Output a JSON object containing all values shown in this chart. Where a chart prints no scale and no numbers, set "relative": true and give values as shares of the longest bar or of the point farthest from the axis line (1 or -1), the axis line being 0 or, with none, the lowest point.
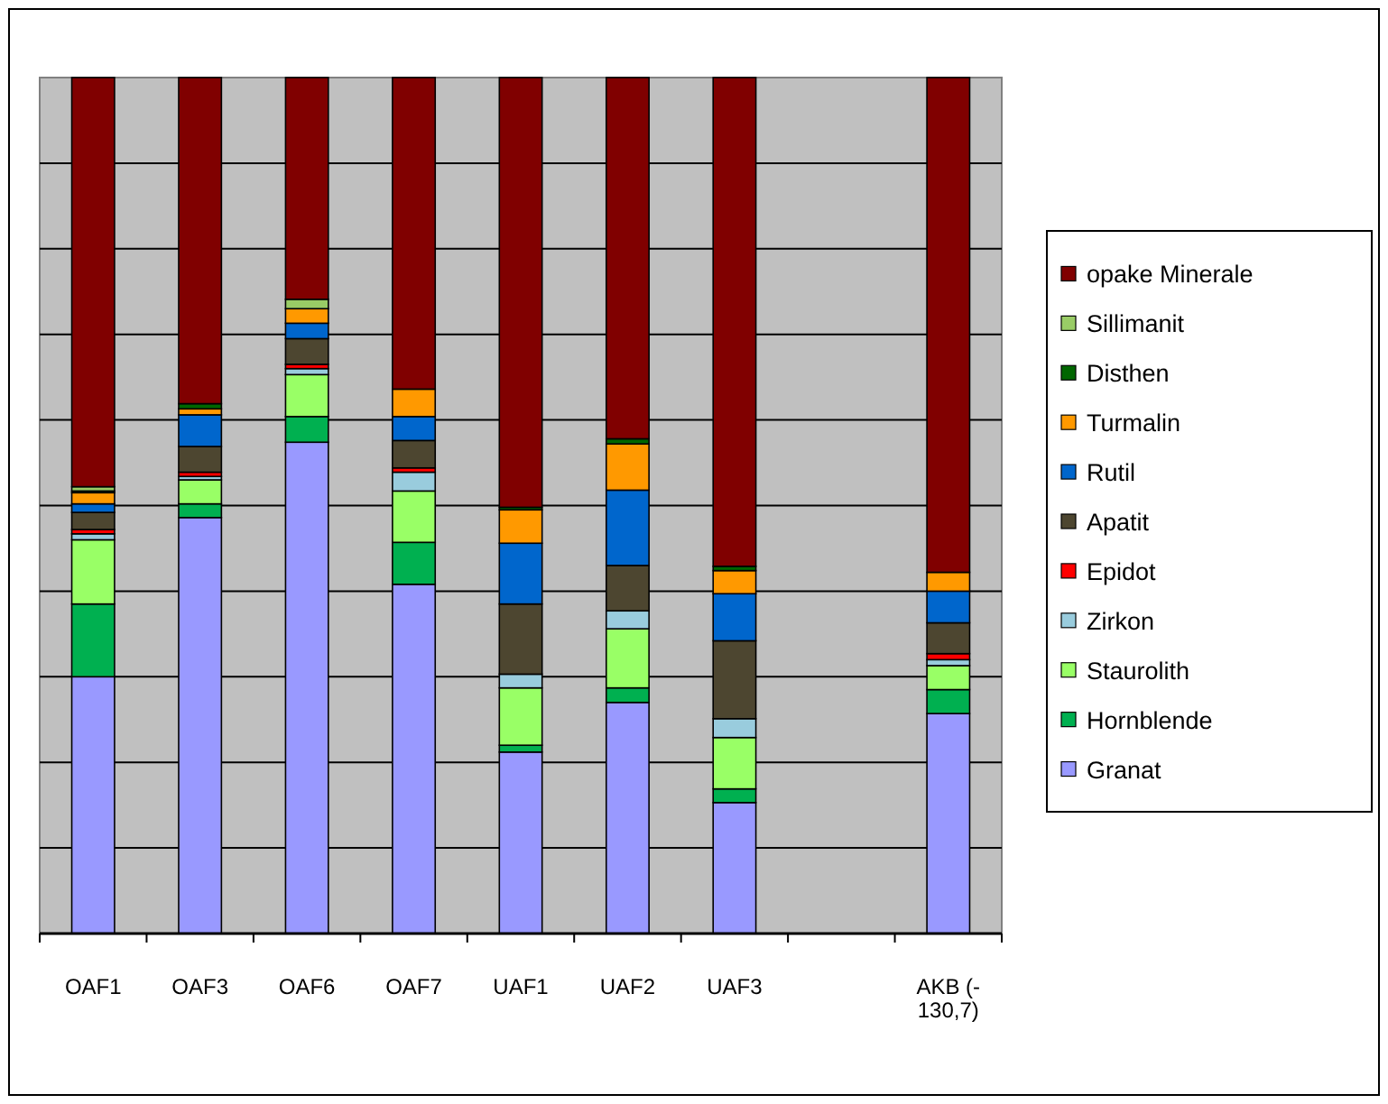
{
  "chart_data": {
    "type": "bar",
    "stacked": true,
    "relative": true,
    "grid": "y",
    "legend": "right",
    "categories": [
      "OAF1",
      "OAF3",
      "OAF6",
      "OAF7",
      "UAF1",
      "UAF2",
      "UAF3",
      null,
      "AKB (-130,7)"
    ],
    "series": [
      {
        "name": "Granat",
        "color": "#9999ff",
        "values": [
          0.3,
          0.486,
          0.574,
          0.408,
          0.212,
          0.27,
          0.153,
          null,
          0.257
        ]
      },
      {
        "name": "Hornblende",
        "color": "#00b050",
        "values": [
          0.085,
          0.016,
          0.03,
          0.049,
          0.008,
          0.017,
          0.016,
          null,
          0.028
        ]
      },
      {
        "name": "Staurolith",
        "color": "#99ff66",
        "values": [
          0.075,
          0.028,
          0.049,
          0.06,
          0.067,
          0.069,
          0.06,
          null,
          0.028
        ]
      },
      {
        "name": "Zirkon",
        "color": "#99ccdd",
        "values": [
          0.007,
          0.004,
          0.007,
          0.022,
          0.016,
          0.021,
          0.022,
          null,
          0.007
        ]
      },
      {
        "name": "Epidot",
        "color": "#ff0000",
        "values": [
          0.005,
          0.005,
          0.005,
          0.005,
          null,
          null,
          null,
          null,
          0.007
        ]
      },
      {
        "name": "Apatit",
        "color": "#4d4630",
        "values": [
          0.02,
          0.03,
          0.03,
          0.032,
          0.082,
          0.053,
          0.091,
          null,
          0.036
        ]
      },
      {
        "name": "Rutil",
        "color": "#0066cc",
        "values": [
          0.01,
          0.037,
          0.018,
          0.028,
          0.071,
          0.088,
          0.055,
          null,
          0.037
        ]
      },
      {
        "name": "Turmalin",
        "color": "#ff9900",
        "values": [
          0.013,
          0.007,
          0.017,
          0.032,
          0.039,
          0.054,
          0.027,
          null,
          0.022
        ]
      },
      {
        "name": "Disthen",
        "color": "#006600",
        "values": [
          0.002,
          0.006,
          null,
          null,
          0.003,
          0.006,
          0.005,
          null,
          null
        ]
      },
      {
        "name": "Sillimanit",
        "color": "#99cc66",
        "values": [
          0.005,
          null,
          0.011,
          null,
          null,
          null,
          null,
          null,
          null
        ]
      },
      {
        "name": "opake Minerale",
        "color": "#800000",
        "values": [
          0.478,
          0.381,
          0.259,
          0.364,
          0.502,
          0.422,
          0.571,
          null,
          0.578
        ]
      }
    ]
  }
}
